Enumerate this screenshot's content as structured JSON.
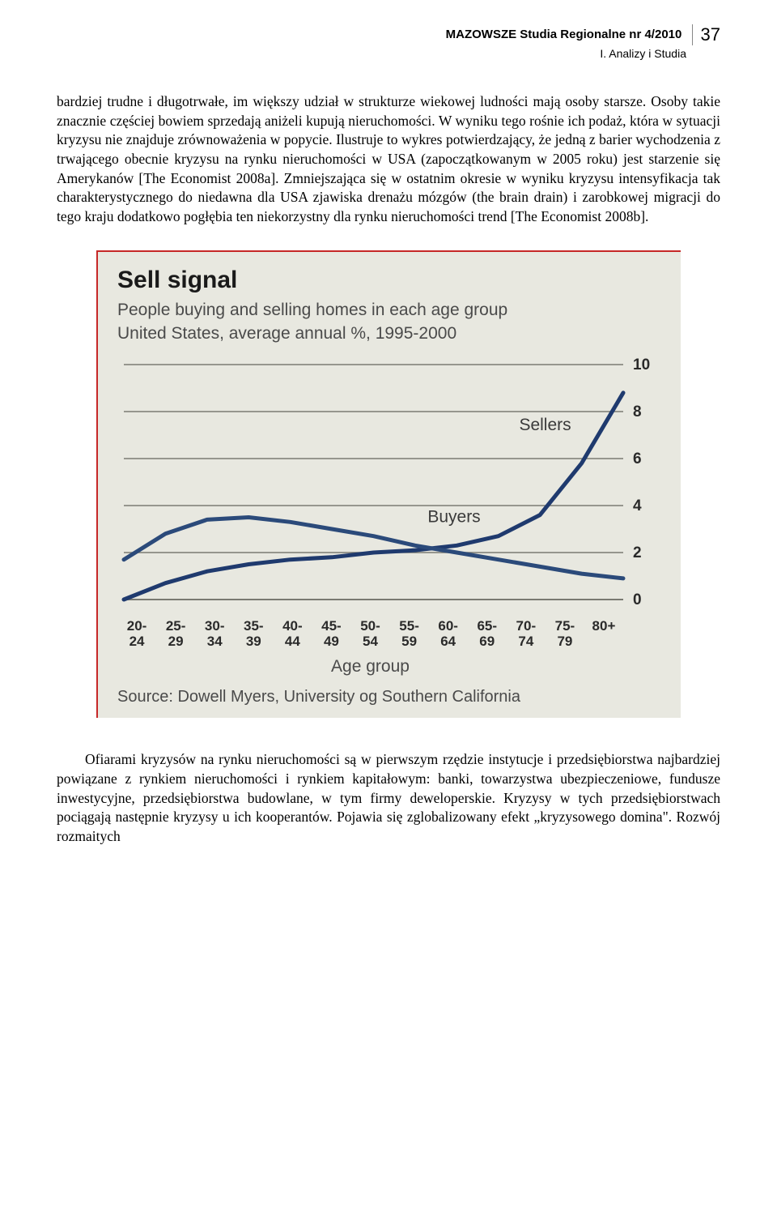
{
  "header": {
    "journal": "MAZOWSZE Studia Regionalne nr 4/2010",
    "section": "I. Analizy i Studia",
    "page_number": "37"
  },
  "paragraph1": "bardziej trudne i długotrwałe, im większy udział w strukturze wiekowej ludności mają osoby starsze. Osoby takie znacznie częściej bowiem sprzedają aniżeli kupują nieruchomości. W wyniku tego rośnie ich podaż, która w sytuacji kryzysu nie znajduje zrównoważenia w popycie. Ilustruje to wykres potwierdzający, że jedną z barier wychodzenia z trwającego obecnie kryzysu na rynku nieruchomości w USA (zapoczątkowanym w 2005 roku) jest starzenie się Amerykanów [The Economist 2008a]. Zmniejszająca się w ostatnim okresie w wyniku kryzysu intensyfikacja tak charakterystycznego do niedawna dla USA zjawiska drenażu mózgów (the brain drain) i zarobkowej migracji do tego kraju dodatkowo pogłębia ten niekorzystny dla rynku nieruchomości trend [The Economist 2008b].",
  "chart": {
    "type": "line",
    "title": "Sell signal",
    "subtitle_line1": "People buying and selling homes in each age group",
    "subtitle_line2": "United States, average annual %, 1995-2000",
    "x_axis_title": "Age group",
    "source": "Source: Dowell Myers, University og Southern California",
    "x_categories": [
      "20-\n24",
      "25-\n29",
      "30-\n34",
      "35-\n39",
      "40-\n44",
      "45-\n49",
      "50-\n54",
      "55-\n59",
      "60-\n64",
      "65-\n69",
      "70-\n74",
      "75-\n79",
      "80+"
    ],
    "y_ticks": [
      0,
      2,
      4,
      6,
      8,
      10
    ],
    "ylim": [
      0,
      10
    ],
    "series": [
      {
        "name": "Sellers",
        "label": "Sellers",
        "color": "#1f3a6e",
        "width": 5,
        "values": [
          0.0,
          0.7,
          1.2,
          1.5,
          1.7,
          1.8,
          2.0,
          2.1,
          2.3,
          2.7,
          3.6,
          5.8,
          8.8
        ]
      },
      {
        "name": "Buyers",
        "label": "Buyers",
        "color": "#2b4a7a",
        "width": 5,
        "values": [
          1.7,
          2.8,
          3.4,
          3.5,
          3.3,
          3.0,
          2.7,
          2.3,
          2.0,
          1.7,
          1.4,
          1.1,
          0.9
        ]
      }
    ],
    "label_positions": {
      "Sellers": {
        "x_index": 9.5,
        "y": 7.2
      },
      "Buyers": {
        "x_index": 7.3,
        "y": 3.3
      }
    },
    "background_color": "#e8e8e0",
    "grid_color": "#7a7a72",
    "text_color": "#2a2a2a",
    "border_color": "#c62828",
    "title_fontsize": 30,
    "subtitle_fontsize": 21,
    "label_fontsize": 17,
    "tick_fontsize": 19
  },
  "paragraph2": "Ofiarami kryzysów na rynku nieruchomości są w pierwszym rzędzie instytucje i przedsiębiorstwa najbardziej powiązane z rynkiem nieruchomości i rynkiem kapitałowym: banki, towarzystwa ubezpieczeniowe, fundusze inwestycyjne, przedsiębiorstwa budowlane, w tym firmy deweloperskie. Kryzysy w tych przedsiębiorstwach pociągają następnie kryzysy u ich kooperantów. Pojawia się zglobalizowany efekt „kryzysowego domina\". Rozwój rozmaitych"
}
